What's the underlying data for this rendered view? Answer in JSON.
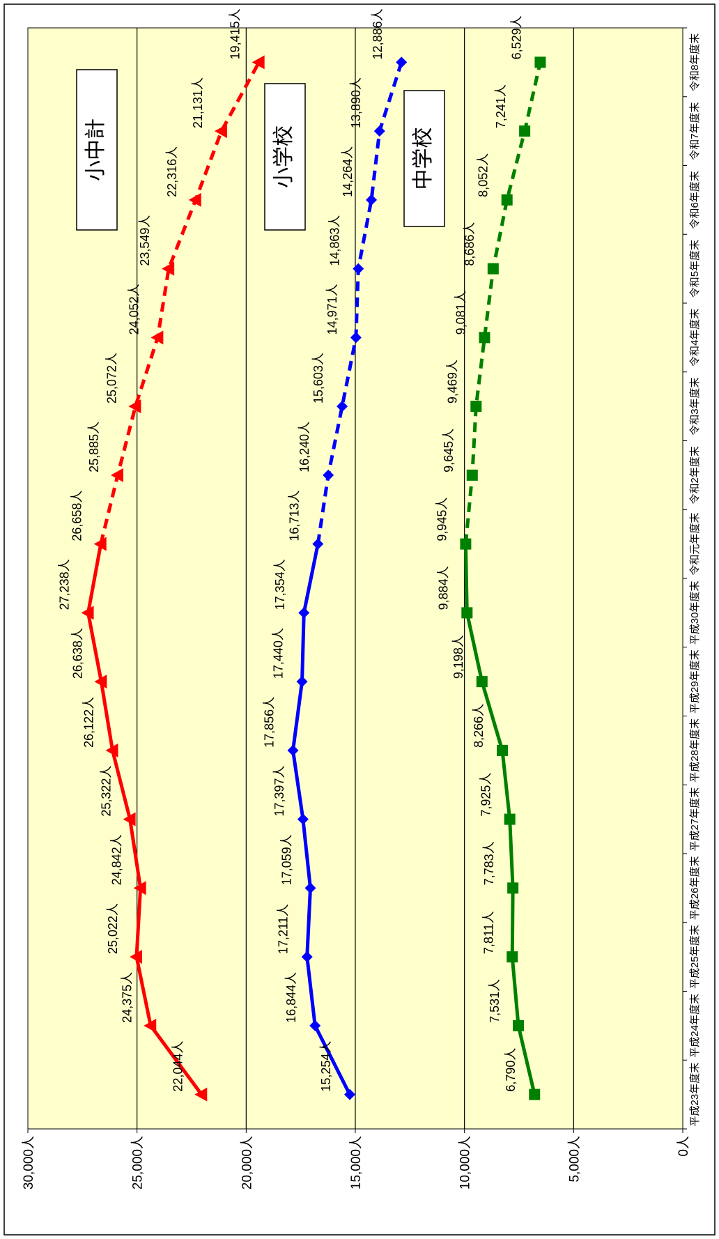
{
  "chart_data": {
    "type": "line",
    "orientation": "rotated-90-clockwise",
    "categories": [
      "平成23年度末",
      "平成24年度末",
      "平成25年度末",
      "平成26年度末",
      "平成27年度末",
      "平成28年度末",
      "平成29年度末",
      "平成30年度末",
      "令和元年度末",
      "令和2年度末",
      "令和3年度末",
      "令和4年度末",
      "令和5年度末",
      "令和6年度末",
      "令和7年度末",
      "令和8年度末"
    ],
    "y_ticks": [
      "0人",
      "5,000人",
      "10,000人",
      "15,000人",
      "20,000人",
      "25,000人",
      "30,000人"
    ],
    "ylim": [
      0,
      30000
    ],
    "y_tick_values": [
      0,
      5000,
      10000,
      15000,
      20000,
      25000,
      30000
    ],
    "grid": true,
    "plot_background": "#ffffcc",
    "series": [
      {
        "name": "小中計",
        "color": "#ff0000",
        "marker": "triangle",
        "values": [
          22044,
          24375,
          25022,
          24842,
          25322,
          26122,
          26638,
          27238,
          26658,
          25885,
          25072,
          24052,
          23549,
          22316,
          21131,
          19415
        ],
        "labels": [
          "22,044人",
          "24,375人",
          "25,022人",
          "24,842人",
          "25,322人",
          "26,122人",
          "26,638人",
          "27,238人",
          "26,658人",
          "25,885人",
          "25,072人",
          "24,052人",
          "23,549人",
          "22,316人",
          "21,131人",
          "19,415人"
        ],
        "dashed_from_index": 8
      },
      {
        "name": "小学校",
        "color": "#0000ff",
        "marker": "diamond",
        "values": [
          15254,
          16844,
          17211,
          17059,
          17397,
          17856,
          17440,
          17354,
          16713,
          16240,
          15603,
          14971,
          14863,
          14264,
          13890,
          12886
        ],
        "labels": [
          "15,254人",
          "16,844人",
          "17,211人",
          "17,059人",
          "17,397人",
          "17,856人",
          "17,440人",
          "17,354人",
          "16,713人",
          "16,240人",
          "15,603人",
          "14,971人",
          "14,863人",
          "14,264人",
          "13,890人",
          "12,886人"
        ],
        "dashed_from_index": 8
      },
      {
        "name": "中学校",
        "color": "#008000",
        "marker": "square",
        "values": [
          6790,
          7531,
          7811,
          7783,
          7925,
          8266,
          9198,
          9884,
          9945,
          9645,
          9469,
          9081,
          8686,
          8052,
          7241,
          6529
        ],
        "labels": [
          "6,790人",
          "7,531人",
          "7,811人",
          "7,783人",
          "7,925人",
          "8,266人",
          "9,198人",
          "9,884人",
          "9,945人",
          "9,645人",
          "9,469人",
          "9,081人",
          "8,686人",
          "8,052人",
          "7,241人",
          "6,529人"
        ],
        "dashed_from_index": 8
      }
    ]
  }
}
